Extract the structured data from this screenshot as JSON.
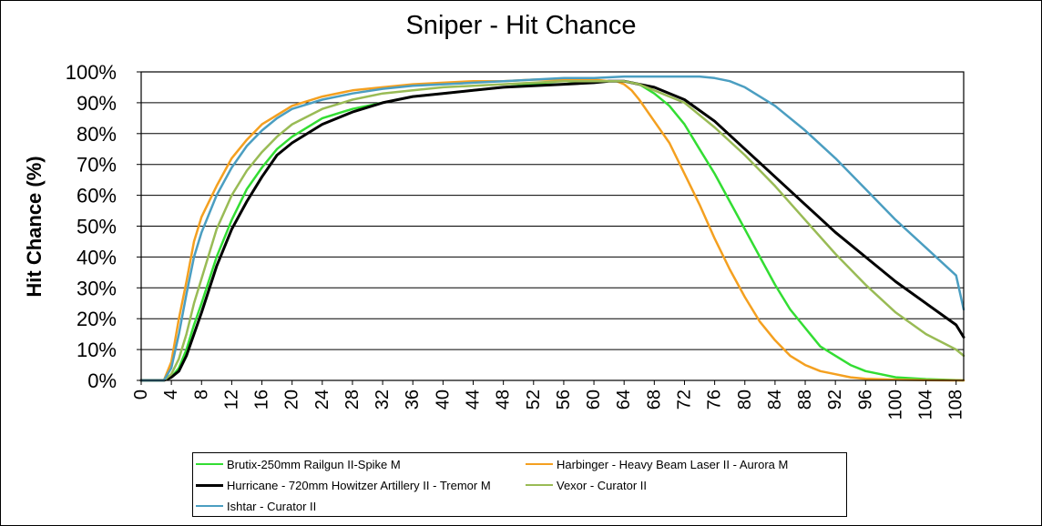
{
  "chart_data": {
    "type": "line",
    "title": "Sniper - Hit Chance",
    "xlabel": "",
    "ylabel": "Hit Chance (%)",
    "xlim": [
      0,
      109
    ],
    "ylim": [
      0,
      100
    ],
    "x_ticks": [
      0,
      4,
      8,
      12,
      16,
      20,
      24,
      28,
      32,
      36,
      40,
      44,
      48,
      52,
      56,
      60,
      64,
      68,
      72,
      76,
      80,
      84,
      88,
      92,
      96,
      100,
      104,
      108
    ],
    "y_ticks": [
      0,
      10,
      20,
      30,
      40,
      50,
      60,
      70,
      80,
      90,
      100
    ],
    "y_tick_suffix": "%",
    "grid": "horizontal",
    "legend_position": "bottom",
    "series": [
      {
        "name": "Brutix-250mm Railgun II-Spike M",
        "color": "#33dd33",
        "x": [
          0,
          2,
          3,
          4,
          5,
          6,
          7,
          8,
          10,
          12,
          14,
          16,
          18,
          20,
          24,
          28,
          32,
          36,
          40,
          44,
          48,
          52,
          56,
          60,
          62,
          64,
          66,
          68,
          70,
          72,
          74,
          76,
          78,
          80,
          82,
          84,
          86,
          88,
          90,
          92,
          94,
          96,
          98,
          100,
          104,
          108,
          109
        ],
        "y": [
          0,
          0,
          0,
          1,
          4,
          10,
          18,
          25,
          40,
          52,
          62,
          69,
          75,
          79,
          85,
          88,
          90,
          92,
          93,
          94,
          95,
          96,
          96,
          97,
          97,
          97,
          96,
          93,
          89,
          83,
          75,
          67,
          58,
          49,
          40,
          31,
          23,
          17,
          11,
          8,
          5,
          3,
          2,
          1,
          0.4,
          0.1,
          0
        ]
      },
      {
        "name": "Harbinger - Heavy Beam Laser II - Aurora M",
        "color": "#f4a020",
        "x": [
          0,
          2,
          3,
          4,
          5,
          6,
          7,
          8,
          10,
          12,
          14,
          16,
          18,
          20,
          24,
          28,
          32,
          36,
          40,
          44,
          48,
          52,
          56,
          60,
          62,
          63,
          64,
          65,
          66,
          68,
          70,
          72,
          74,
          76,
          78,
          80,
          82,
          84,
          86,
          88,
          90,
          92,
          94,
          96,
          100,
          104,
          108,
          109
        ],
        "y": [
          0,
          0,
          0,
          6,
          20,
          32,
          45,
          53,
          63,
          72,
          78,
          83,
          86,
          89,
          92,
          94,
          95,
          96,
          96.5,
          97,
          97,
          97.5,
          97.5,
          97.5,
          97,
          97,
          96,
          94,
          91,
          84,
          77,
          67,
          57,
          46,
          36,
          27,
          19,
          13,
          8,
          5,
          3,
          2,
          1,
          0.5,
          0.2,
          0.1,
          0,
          0
        ]
      },
      {
        "name": "Hurricane - 720mm Howitzer Artillery II - Tremor M",
        "color": "#000000",
        "x": [
          0,
          2,
          3,
          4,
          5,
          6,
          7,
          8,
          10,
          12,
          14,
          16,
          18,
          20,
          24,
          28,
          32,
          36,
          40,
          44,
          48,
          52,
          56,
          60,
          62,
          64,
          66,
          68,
          72,
          76,
          80,
          84,
          88,
          92,
          96,
          100,
          104,
          108,
          109
        ],
        "y": [
          0,
          0,
          0,
          1,
          3,
          8,
          15,
          22,
          37,
          49,
          58,
          66,
          73,
          77,
          83,
          87,
          90,
          92,
          93,
          94,
          95,
          95.5,
          96,
          96.5,
          97,
          97,
          96,
          95,
          91,
          84,
          75,
          66,
          57,
          48,
          40,
          32,
          25,
          18,
          14
        ]
      },
      {
        "name": "Vexor - Curator II",
        "color": "#99bb55",
        "x": [
          0,
          2,
          3,
          4,
          5,
          6,
          7,
          8,
          10,
          12,
          14,
          16,
          18,
          20,
          24,
          28,
          32,
          36,
          40,
          44,
          48,
          52,
          56,
          60,
          62,
          64,
          66,
          68,
          72,
          76,
          80,
          84,
          88,
          92,
          96,
          100,
          104,
          108,
          109
        ],
        "y": [
          0,
          0,
          0,
          2,
          7,
          15,
          25,
          33,
          49,
          60,
          68,
          74,
          79,
          83,
          88,
          91,
          93,
          94,
          95,
          95.5,
          96,
          96.5,
          97,
          97,
          97,
          97,
          96,
          94,
          90,
          82,
          73,
          63,
          52,
          41,
          31,
          22,
          15,
          10,
          8
        ]
      },
      {
        "name": "Ishtar - Curator II",
        "color": "#4b9ec1",
        "x": [
          0,
          2,
          3,
          4,
          5,
          6,
          7,
          8,
          10,
          12,
          14,
          16,
          18,
          20,
          24,
          28,
          32,
          36,
          40,
          44,
          48,
          52,
          56,
          60,
          64,
          68,
          72,
          74,
          76,
          78,
          80,
          84,
          88,
          92,
          96,
          100,
          104,
          108,
          109
        ],
        "y": [
          0,
          0,
          0,
          4,
          15,
          28,
          40,
          48,
          60,
          69,
          76,
          81,
          85,
          88,
          91,
          93,
          94.5,
          95.5,
          96,
          96.5,
          97,
          97.5,
          98,
          98,
          98.5,
          98.5,
          98.5,
          98.5,
          98,
          97,
          95,
          89,
          81,
          72,
          62,
          52,
          43,
          34,
          23
        ]
      }
    ]
  }
}
